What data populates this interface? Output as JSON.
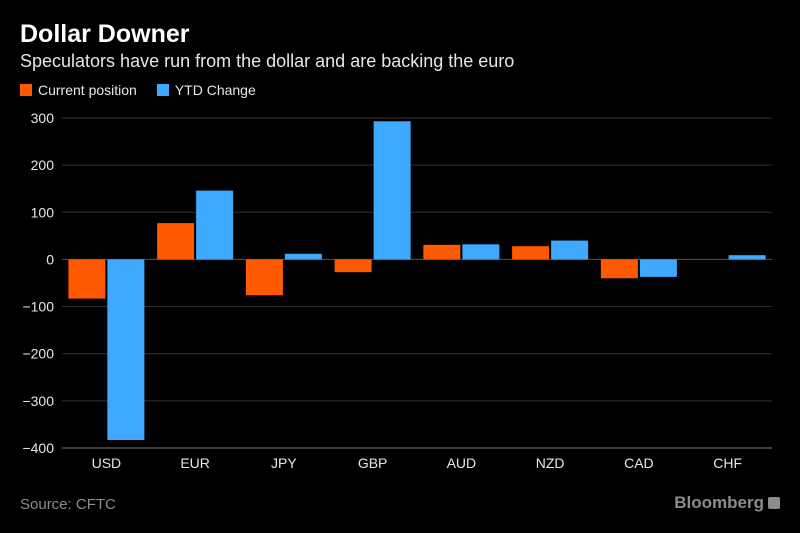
{
  "title": "Dollar Downer",
  "subtitle": "Speculators have run from the dollar and are backing the euro",
  "source": "Source: CFTC",
  "brand": "Bloomberg",
  "colors": {
    "current": "#ff5a00",
    "ytd": "#3fa9ff",
    "grid": "#333333",
    "text": "#e6e6e6"
  },
  "chart_data": {
    "type": "bar",
    "categories": [
      "USD",
      "EUR",
      "JPY",
      "GBP",
      "AUD",
      "NZD",
      "CAD",
      "CHF"
    ],
    "series": [
      {
        "name": "Current position",
        "values": [
          -83,
          77,
          -76,
          -27,
          31,
          28,
          -40,
          0
        ]
      },
      {
        "name": "YTD Change",
        "values": [
          -383,
          146,
          12,
          293,
          32,
          40,
          -37,
          9
        ]
      }
    ],
    "ylim": [
      -400,
      300
    ],
    "yticks": [
      300,
      200,
      100,
      0,
      -100,
      -200,
      -300,
      -400
    ],
    "ytick_labels": [
      "300",
      "200",
      "100",
      "0",
      "−100",
      "−200",
      "−300",
      "−400"
    ],
    "grid": true,
    "legend": "top-left"
  }
}
